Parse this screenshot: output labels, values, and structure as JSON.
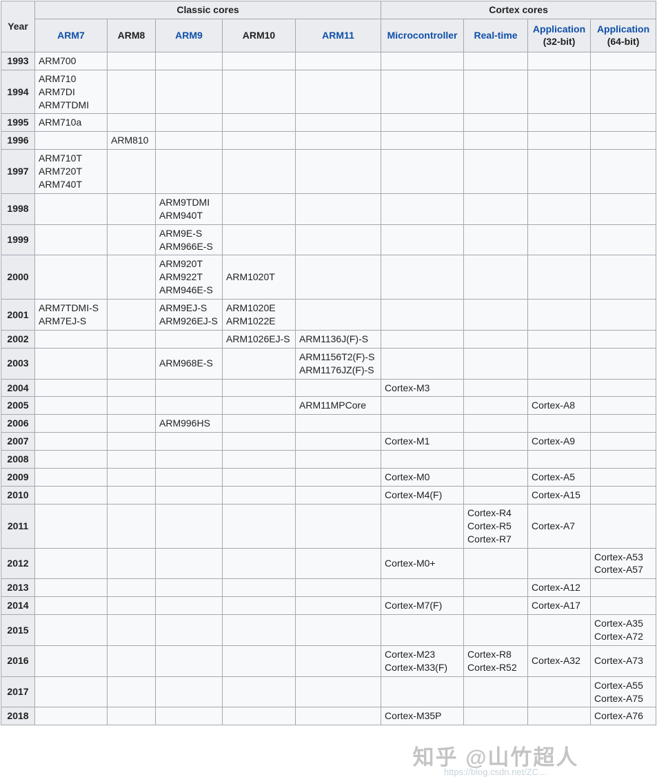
{
  "table": {
    "year_label": "Year",
    "groups": [
      {
        "id": "classic",
        "label": "Classic cores",
        "span": 5
      },
      {
        "id": "cortex",
        "label": "Cortex cores",
        "span": 4
      }
    ],
    "columns": [
      {
        "id": "arm7",
        "label": "ARM7",
        "link": true
      },
      {
        "id": "arm8",
        "label": "ARM8",
        "link": false
      },
      {
        "id": "arm9",
        "label": "ARM9",
        "link": true
      },
      {
        "id": "arm10",
        "label": "ARM10",
        "link": false
      },
      {
        "id": "arm11",
        "label": "ARM11",
        "link": true
      },
      {
        "id": "microcontroller",
        "label": "Microcontroller",
        "link": true
      },
      {
        "id": "real-time",
        "label": "Real-time",
        "link": true
      },
      {
        "id": "application-32bit",
        "label": "Application",
        "sub": "(32-bit)",
        "link": true
      },
      {
        "id": "application-64bit",
        "label": "Application",
        "sub": "(64-bit)",
        "link": true
      }
    ],
    "rows": [
      {
        "year": "1993",
        "cells": [
          [
            "ARM700"
          ],
          [],
          [],
          [],
          [],
          [],
          [],
          [],
          []
        ]
      },
      {
        "year": "1994",
        "cells": [
          [
            "ARM710",
            "ARM7DI",
            "ARM7TDMI"
          ],
          [],
          [],
          [],
          [],
          [],
          [],
          [],
          []
        ]
      },
      {
        "year": "1995",
        "cells": [
          [
            "ARM710a"
          ],
          [],
          [],
          [],
          [],
          [],
          [],
          [],
          []
        ]
      },
      {
        "year": "1996",
        "cells": [
          [],
          [
            "ARM810"
          ],
          [],
          [],
          [],
          [],
          [],
          [],
          []
        ]
      },
      {
        "year": "1997",
        "cells": [
          [
            "ARM710T",
            "ARM720T",
            "ARM740T"
          ],
          [],
          [],
          [],
          [],
          [],
          [],
          [],
          []
        ]
      },
      {
        "year": "1998",
        "cells": [
          [],
          [],
          [
            "ARM9TDMI",
            "ARM940T"
          ],
          [],
          [],
          [],
          [],
          [],
          []
        ]
      },
      {
        "year": "1999",
        "cells": [
          [],
          [],
          [
            "ARM9E-S",
            "ARM966E-S"
          ],
          [],
          [],
          [],
          [],
          [],
          []
        ]
      },
      {
        "year": "2000",
        "cells": [
          [],
          [],
          [
            "ARM920T",
            "ARM922T",
            "ARM946E-S"
          ],
          [
            "ARM1020T"
          ],
          [],
          [],
          [],
          [],
          []
        ]
      },
      {
        "year": "2001",
        "cells": [
          [
            "ARM7TDMI-S",
            "ARM7EJ-S"
          ],
          [],
          [
            "ARM9EJ-S",
            "ARM926EJ-S"
          ],
          [
            "ARM1020E",
            "ARM1022E"
          ],
          [],
          [],
          [],
          [],
          []
        ]
      },
      {
        "year": "2002",
        "cells": [
          [],
          [],
          [],
          [
            "ARM1026EJ-S"
          ],
          [
            "ARM1136J(F)-S"
          ],
          [],
          [],
          [],
          []
        ]
      },
      {
        "year": "2003",
        "cells": [
          [],
          [],
          [
            "ARM968E-S"
          ],
          [],
          [
            "ARM1156T2(F)-S",
            "ARM1176JZ(F)-S"
          ],
          [],
          [],
          [],
          []
        ]
      },
      {
        "year": "2004",
        "cells": [
          [],
          [],
          [],
          [],
          [],
          [
            "Cortex-M3"
          ],
          [],
          [],
          []
        ]
      },
      {
        "year": "2005",
        "cells": [
          [],
          [],
          [],
          [],
          [
            "ARM11MPCore"
          ],
          [],
          [],
          [
            "Cortex-A8"
          ],
          []
        ]
      },
      {
        "year": "2006",
        "cells": [
          [],
          [],
          [
            "ARM996HS"
          ],
          [],
          [],
          [],
          [],
          [],
          []
        ]
      },
      {
        "year": "2007",
        "cells": [
          [],
          [],
          [],
          [],
          [],
          [
            "Cortex-M1"
          ],
          [],
          [
            "Cortex-A9"
          ],
          []
        ]
      },
      {
        "year": "2008",
        "cells": [
          [],
          [],
          [],
          [],
          [],
          [],
          [],
          [],
          []
        ]
      },
      {
        "year": "2009",
        "cells": [
          [],
          [],
          [],
          [],
          [],
          [
            "Cortex-M0"
          ],
          [],
          [
            "Cortex-A5"
          ],
          []
        ]
      },
      {
        "year": "2010",
        "cells": [
          [],
          [],
          [],
          [],
          [],
          [
            "Cortex-M4(F)"
          ],
          [],
          [
            "Cortex-A15"
          ],
          []
        ]
      },
      {
        "year": "2011",
        "cells": [
          [],
          [],
          [],
          [],
          [],
          [],
          [
            "Cortex-R4",
            "Cortex-R5",
            "Cortex-R7"
          ],
          [
            "Cortex-A7"
          ],
          []
        ]
      },
      {
        "year": "2012",
        "cells": [
          [],
          [],
          [],
          [],
          [],
          [
            "Cortex-M0+"
          ],
          [],
          [],
          [
            "Cortex-A53",
            "Cortex-A57"
          ]
        ]
      },
      {
        "year": "2013",
        "cells": [
          [],
          [],
          [],
          [],
          [],
          [],
          [],
          [
            "Cortex-A12"
          ],
          []
        ]
      },
      {
        "year": "2014",
        "cells": [
          [],
          [],
          [],
          [],
          [],
          [
            "Cortex-M7(F)"
          ],
          [],
          [
            "Cortex-A17"
          ],
          []
        ]
      },
      {
        "year": "2015",
        "cells": [
          [],
          [],
          [],
          [],
          [],
          [],
          [],
          [],
          [
            "Cortex-A35",
            "Cortex-A72"
          ]
        ]
      },
      {
        "year": "2016",
        "cells": [
          [],
          [],
          [],
          [],
          [],
          [
            "Cortex-M23",
            "Cortex-M33(F)"
          ],
          [
            "Cortex-R8",
            "Cortex-R52"
          ],
          [
            "Cortex-A32"
          ],
          [
            "Cortex-A73"
          ]
        ]
      },
      {
        "year": "2017",
        "cells": [
          [],
          [],
          [],
          [],
          [],
          [],
          [],
          [],
          [
            "Cortex-A55",
            "Cortex-A75"
          ]
        ]
      },
      {
        "year": "2018",
        "cells": [
          [],
          [],
          [],
          [],
          [],
          [
            "Cortex-M35P"
          ],
          [],
          [],
          [
            "Cortex-A76"
          ]
        ]
      }
    ]
  },
  "colors": {
    "header_bg": "#eaecf0",
    "body_bg": "#f8f9fa",
    "border": "#a2a9b1",
    "link_blue": "#0f4fa8",
    "text": "#202122"
  },
  "watermark": {
    "line1": "知乎 @山竹超人",
    "line2": "https://blog.csdn.net/ZC…"
  }
}
